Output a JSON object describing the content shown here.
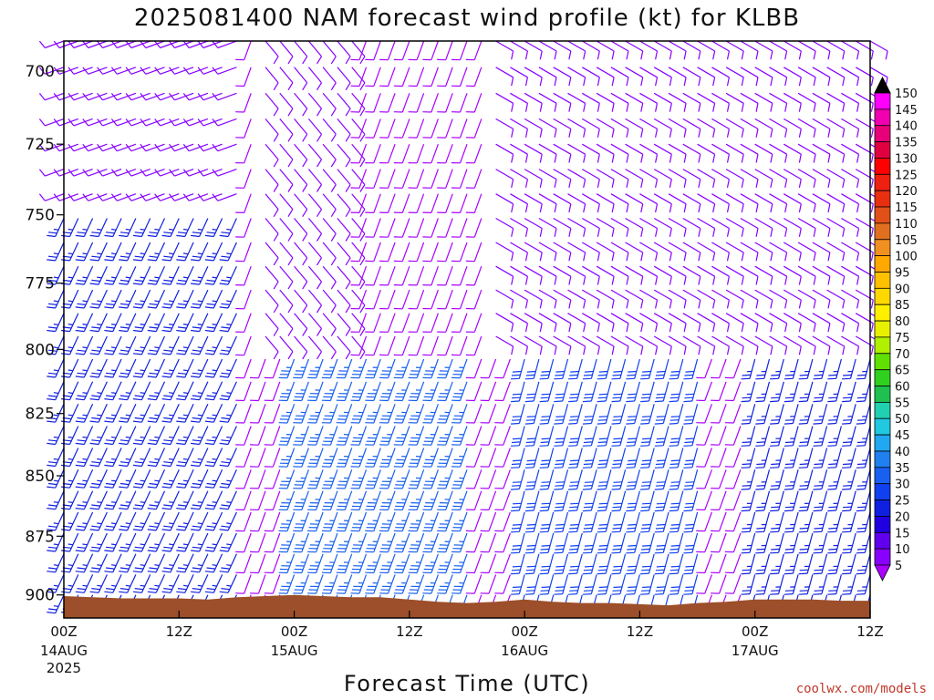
{
  "chart_data": {
    "type": "wind-barb time-height",
    "title": "2025081400 NAM forecast wind profile (kt) for KLBB",
    "xlabel": "Forecast Time (UTC)",
    "ylabel": "",
    "y_ticks": [
      "700",
      "725",
      "750",
      "775",
      "800",
      "825",
      "850",
      "875",
      "900"
    ],
    "y_range_hpa": [
      690,
      910
    ],
    "x_range_hours": [
      0,
      84
    ],
    "x_ticks": [
      {
        "hour": 0,
        "label": "00Z",
        "sub": "14AUG",
        "sub2": "2025"
      },
      {
        "hour": 12,
        "label": "12Z",
        "sub": "",
        "sub2": ""
      },
      {
        "hour": 24,
        "label": "00Z",
        "sub": "15AUG",
        "sub2": ""
      },
      {
        "hour": 36,
        "label": "12Z",
        "sub": "",
        "sub2": ""
      },
      {
        "hour": 48,
        "label": "00Z",
        "sub": "16AUG",
        "sub2": ""
      },
      {
        "hour": 60,
        "label": "12Z",
        "sub": "",
        "sub2": ""
      },
      {
        "hour": 72,
        "label": "00Z",
        "sub": "17AUG",
        "sub2": ""
      },
      {
        "hour": 84,
        "label": "12Z",
        "sub": "",
        "sub2": ""
      }
    ],
    "colorbar_kt": [
      "150",
      "145",
      "140",
      "135",
      "130",
      "125",
      "120",
      "115",
      "110",
      "105",
      "100",
      "95",
      "90",
      "85",
      "80",
      "75",
      "70",
      "65",
      "60",
      "55",
      "50",
      "45",
      "40",
      "35",
      "30",
      "25",
      "20",
      "15",
      "10",
      "5"
    ],
    "colorbar_colors": [
      "#ff00ff",
      "#f000b0",
      "#e8007a",
      "#e00040",
      "#ff0000",
      "#f02010",
      "#e83010",
      "#e05018",
      "#e07020",
      "#f09020",
      "#ffa800",
      "#ffc000",
      "#ffd800",
      "#fff000",
      "#e8f000",
      "#b0f000",
      "#60e000",
      "#30d020",
      "#20c050",
      "#20d0b0",
      "#20c8e0",
      "#20a8f0",
      "#2080f0",
      "#1860f0",
      "#1040f0",
      "#1020e0",
      "#2000e0",
      "#6000ee",
      "#8800ff",
      "#aa00ff"
    ],
    "surface_pressure_hpa": [
      {
        "hour": 0,
        "p": 900.5
      },
      {
        "hour": 3,
        "p": 901
      },
      {
        "hour": 6,
        "p": 901.5
      },
      {
        "hour": 9,
        "p": 901.5
      },
      {
        "hour": 12,
        "p": 901.5
      },
      {
        "hour": 15,
        "p": 902
      },
      {
        "hour": 18,
        "p": 901
      },
      {
        "hour": 21,
        "p": 900.5
      },
      {
        "hour": 24,
        "p": 900
      },
      {
        "hour": 27,
        "p": 900.5
      },
      {
        "hour": 30,
        "p": 901
      },
      {
        "hour": 33,
        "p": 901
      },
      {
        "hour": 36,
        "p": 902
      },
      {
        "hour": 39,
        "p": 903
      },
      {
        "hour": 42,
        "p": 903.5
      },
      {
        "hour": 45,
        "p": 903
      },
      {
        "hour": 48,
        "p": 902
      },
      {
        "hour": 51,
        "p": 903
      },
      {
        "hour": 54,
        "p": 903.5
      },
      {
        "hour": 57,
        "p": 903.5
      },
      {
        "hour": 60,
        "p": 904
      },
      {
        "hour": 63,
        "p": 904.5
      },
      {
        "hour": 66,
        "p": 903.5
      },
      {
        "hour": 69,
        "p": 903
      },
      {
        "hour": 72,
        "p": 902
      },
      {
        "hour": 75,
        "p": 902
      },
      {
        "hour": 78,
        "p": 902
      },
      {
        "hour": 81,
        "p": 902.5
      },
      {
        "hour": 84,
        "p": 902.5
      }
    ],
    "wind_regimes": [
      {
        "hours": [
          0,
          18
        ],
        "level_band_hpa": [
          690,
          750
        ],
        "speed_kt": 10,
        "from_deg": 250
      },
      {
        "hours": [
          0,
          18
        ],
        "level_band_hpa": [
          750,
          900
        ],
        "speed_kt": 25,
        "from_deg": 205
      },
      {
        "hours": [
          20,
          30
        ],
        "level_band_hpa": [
          690,
          800
        ],
        "speed_kt": 10,
        "from_deg": 140
      },
      {
        "hours": [
          24,
          42
        ],
        "level_band_hpa": [
          800,
          900
        ],
        "speed_kt": 35,
        "from_deg": 200
      },
      {
        "hours": [
          44,
          84
        ],
        "level_band_hpa": [
          690,
          800
        ],
        "speed_kt": 10,
        "from_deg": 120
      },
      {
        "hours": [
          48,
          66
        ],
        "level_band_hpa": [
          800,
          900
        ],
        "speed_kt": 30,
        "from_deg": 195
      },
      {
        "hours": [
          72,
          84
        ],
        "level_band_hpa": [
          800,
          900
        ],
        "speed_kt": 25,
        "from_deg": 195
      }
    ]
  },
  "credit": "coolwx.com/models",
  "colors": {
    "terrain": "#9c4f2a",
    "frame": "#000000"
  }
}
